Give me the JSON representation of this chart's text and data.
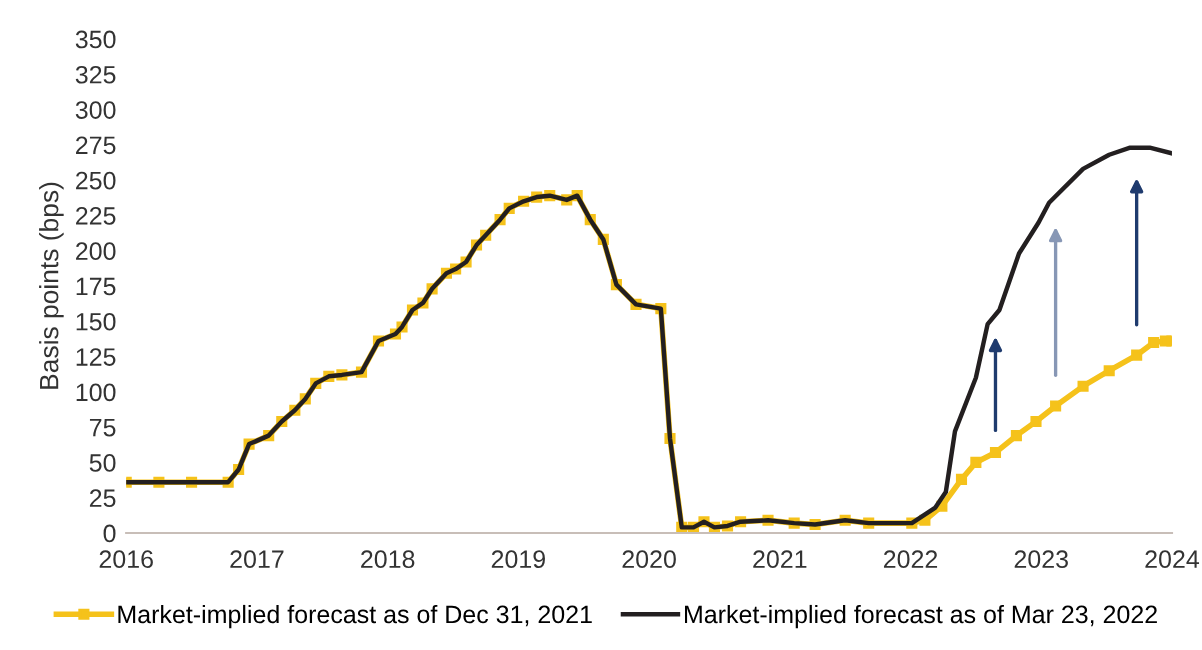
{
  "chart_data": {
    "type": "line",
    "ylabel": "Basis points (bps)",
    "xlim": [
      2016,
      2024
    ],
    "xticks": [
      2016,
      2017,
      2018,
      2019,
      2020,
      2021,
      2022,
      2023,
      2024
    ],
    "ylim": [
      0,
      350
    ],
    "yticks": [
      0,
      25,
      50,
      75,
      100,
      125,
      150,
      175,
      200,
      225,
      250,
      275,
      300,
      325,
      350
    ],
    "grid": false,
    "legend": "bottom",
    "series": [
      {
        "name": "Market-implied forecast as of Dec 31, 2021",
        "color": "#f5c21b",
        "marker": "square",
        "x": [
          2016.0,
          2016.25,
          2016.5,
          2016.78,
          2016.86,
          2016.94,
          2017.09,
          2017.19,
          2017.29,
          2017.37,
          2017.45,
          2017.55,
          2017.65,
          2017.8,
          2017.93,
          2018.06,
          2018.11,
          2018.19,
          2018.27,
          2018.34,
          2018.45,
          2018.52,
          2018.6,
          2018.68,
          2018.75,
          2018.86,
          2018.93,
          2019.04,
          2019.14,
          2019.24,
          2019.37,
          2019.45,
          2019.55,
          2019.65,
          2019.75,
          2019.9,
          2020.09,
          2020.16,
          2020.25,
          2020.34,
          2020.42,
          2020.5,
          2020.6,
          2020.7,
          2020.91,
          2021.11,
          2021.27,
          2021.5,
          2021.68,
          2022.01,
          2022.11,
          2022.24,
          2022.39,
          2022.5,
          2022.65,
          2022.81,
          2022.96,
          2023.11,
          2023.32,
          2023.52,
          2023.73,
          2023.86,
          2023.95,
          2024.0
        ],
        "values": [
          36,
          36,
          36,
          36,
          45,
          63,
          69,
          79,
          87,
          95,
          106,
          111,
          112,
          114,
          136,
          141,
          146,
          158,
          163,
          173,
          184,
          187,
          192,
          204,
          211,
          222,
          230,
          235,
          238,
          239,
          236,
          239,
          222,
          208,
          176,
          162,
          159,
          67,
          4,
          4,
          8,
          4,
          5,
          8,
          9,
          7,
          6,
          9,
          7,
          7,
          9,
          19,
          38,
          50,
          57,
          69,
          79,
          90,
          104,
          115,
          126,
          135,
          136,
          136
        ]
      },
      {
        "name": "Market-implied forecast as of Mar 23, 2022",
        "color": "#231f20",
        "marker": "none",
        "x": [
          2016.0,
          2016.78,
          2016.86,
          2016.94,
          2017.09,
          2017.19,
          2017.29,
          2017.37,
          2017.45,
          2017.55,
          2017.65,
          2017.8,
          2017.93,
          2018.06,
          2018.11,
          2018.19,
          2018.27,
          2018.34,
          2018.45,
          2018.52,
          2018.6,
          2018.68,
          2018.75,
          2018.86,
          2018.93,
          2019.04,
          2019.14,
          2019.24,
          2019.37,
          2019.45,
          2019.55,
          2019.65,
          2019.75,
          2019.9,
          2020.09,
          2020.16,
          2020.25,
          2020.34,
          2020.42,
          2020.5,
          2020.6,
          2020.7,
          2020.91,
          2021.11,
          2021.27,
          2021.5,
          2021.68,
          2022.01,
          2022.19,
          2022.27,
          2022.34,
          2022.5,
          2022.59,
          2022.68,
          2022.83,
          2022.98,
          2023.06,
          2023.32,
          2023.52,
          2023.68,
          2023.83,
          2024.0
        ],
        "values": [
          36,
          36,
          45,
          63,
          69,
          79,
          87,
          95,
          106,
          111,
          112,
          114,
          136,
          141,
          146,
          158,
          163,
          173,
          184,
          187,
          192,
          204,
          211,
          222,
          230,
          235,
          238,
          239,
          236,
          239,
          222,
          208,
          176,
          162,
          159,
          67,
          4,
          4,
          8,
          4,
          5,
          8,
          9,
          7,
          6,
          9,
          7,
          7,
          18,
          29,
          72,
          110,
          148,
          158,
          198,
          220,
          234,
          258,
          268,
          273,
          273,
          269
        ]
      }
    ]
  }
}
